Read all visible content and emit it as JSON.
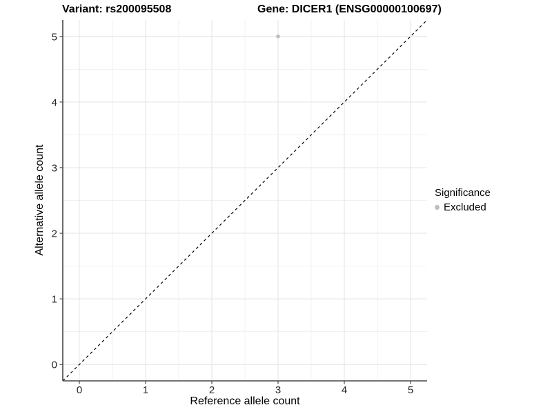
{
  "chart_data": {
    "type": "scatter",
    "title_left": "Variant: rs200095508",
    "title_right": "Gene: DICER1 (ENSG00000100697)",
    "xlabel": "Reference allele count",
    "ylabel": "Alternative allele count",
    "xlim": [
      -0.25,
      5.25
    ],
    "ylim": [
      -0.25,
      5.25
    ],
    "x_ticks": [
      0,
      1,
      2,
      3,
      4,
      5
    ],
    "y_ticks": [
      0,
      1,
      2,
      3,
      4,
      5
    ],
    "grid": "major+minor",
    "series": [
      {
        "name": "Excluded",
        "color": "#bebebe",
        "points": [
          {
            "x": 3,
            "y": 5
          }
        ]
      }
    ],
    "reference_line": {
      "kind": "identity",
      "from": [
        -0.25,
        -0.25
      ],
      "to": [
        5.25,
        5.25
      ],
      "style": "dashed",
      "color": "#000000"
    },
    "legend": {
      "title": "Significance",
      "position": "right",
      "entries": [
        {
          "label": "Excluded",
          "color": "#bebebe"
        }
      ]
    },
    "colors": {
      "background": "#ffffff",
      "grid_major": "#e3e3e3",
      "grid_minor": "#f1f1f1",
      "axis_line": "#474747",
      "tick_label": "#262626",
      "title_text": "#000000",
      "point": "#bebebe"
    }
  }
}
